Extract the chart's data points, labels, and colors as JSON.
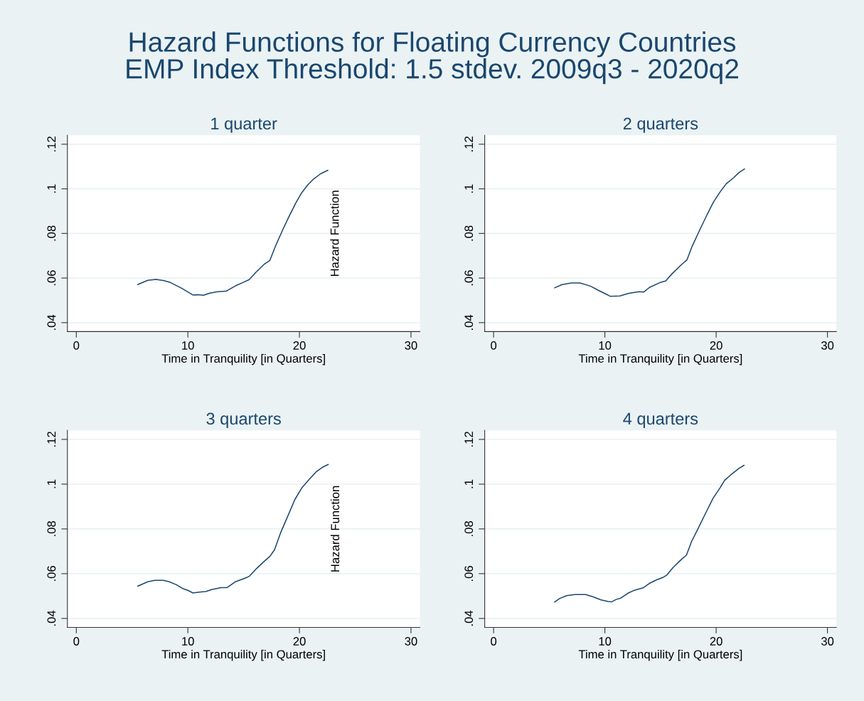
{
  "chart_data": [
    {
      "type": "line",
      "title": "1 quarter",
      "xlabel": "Time in Tranquility [in Quarters]",
      "annotations": [
        "Hazard Functions for Floating Currency Countries\nEMP Index Threshold: 1.5 stdev. 2009q3 - 2020q2"
      ],
      "xlim": [
        -0.8,
        30.8
      ],
      "xticks": [
        0,
        10,
        20,
        30
      ],
      "ylim": [
        0.036,
        0.124
      ],
      "yticks": [
        {
          "value": 0.04,
          "label": ".04"
        },
        {
          "value": 0.06,
          "label": ".06"
        },
        {
          "value": 0.08,
          "label": ".08"
        },
        {
          "value": 0.1,
          "label": ".1"
        },
        {
          "value": 0.12,
          "label": ".12"
        }
      ],
      "grid": "y",
      "series": [
        {
          "name": "Hazard Function",
          "color": "#1a476f",
          "x": [
            5.5,
            6.41,
            7.15,
            7.79,
            8.43,
            9.38,
            10.45,
            10.87,
            11.4,
            11.93,
            12.57,
            13.42,
            14.27,
            14.9,
            15.5,
            16.07,
            16.82,
            17.35,
            17.88,
            18.51,
            19.04,
            19.68,
            20.21,
            20.75,
            21.27,
            21.91,
            22.55
          ],
          "values": [
            0.0571,
            0.059,
            0.0594,
            0.0589,
            0.058,
            0.0556,
            0.0524,
            0.0525,
            0.0523,
            0.0532,
            0.0538,
            0.0541,
            0.0565,
            0.0579,
            0.0593,
            0.0624,
            0.0661,
            0.0679,
            0.0746,
            0.0817,
            0.0873,
            0.0937,
            0.0983,
            0.1018,
            0.1044,
            0.1068,
            0.1083
          ]
        }
      ]
    },
    {
      "type": "line",
      "title": "2 quarters",
      "xlabel": "Time in Tranquility [in Quarters]",
      "xlim": [
        -0.8,
        30.8
      ],
      "xticks": [
        0,
        10,
        20,
        30
      ],
      "ylim": [
        0.036,
        0.124
      ],
      "yticks": [
        {
          "value": 0.04,
          "label": ".04"
        },
        {
          "value": 0.06,
          "label": ".06"
        },
        {
          "value": 0.08,
          "label": ".08"
        },
        {
          "value": 0.1,
          "label": ".1"
        },
        {
          "value": 0.12,
          "label": ".12"
        }
      ],
      "grid": "y",
      "series": [
        {
          "color": "#1a476f",
          "x": [
            5.48,
            6.16,
            7.0,
            7.75,
            8.7,
            9.34,
            9.98,
            10.5,
            11.36,
            12.1,
            13.06,
            13.48,
            14.01,
            14.97,
            15.46,
            16.03,
            16.88,
            17.37,
            17.83,
            18.47,
            19.21,
            19.75,
            20.38,
            20.91,
            21.55,
            22.08,
            22.55
          ],
          "values": [
            0.0556,
            0.0571,
            0.0578,
            0.0578,
            0.0564,
            0.0547,
            0.0531,
            0.0518,
            0.052,
            0.0531,
            0.0539,
            0.0537,
            0.0558,
            0.058,
            0.0587,
            0.0619,
            0.066,
            0.0681,
            0.0741,
            0.081,
            0.0887,
            0.094,
            0.0988,
            0.1023,
            0.1049,
            0.1074,
            0.1089
          ]
        }
      ]
    },
    {
      "type": "line",
      "title": "3 quarters",
      "xlabel": "Time in Tranquility [in Quarters]",
      "xlim": [
        -0.8,
        30.8
      ],
      "xticks": [
        0,
        10,
        20,
        30
      ],
      "ylim": [
        0.036,
        0.124
      ],
      "yticks": [
        {
          "value": 0.04,
          "label": ".04"
        },
        {
          "value": 0.06,
          "label": ".06"
        },
        {
          "value": 0.08,
          "label": ".08"
        },
        {
          "value": 0.1,
          "label": ".1"
        },
        {
          "value": 0.12,
          "label": ".12"
        }
      ],
      "grid": "y",
      "series": [
        {
          "name": "Hazard Function",
          "color": "#1a476f",
          "x": [
            5.5,
            6.41,
            7.05,
            7.79,
            8.32,
            8.96,
            9.6,
            10.02,
            10.45,
            11.08,
            11.61,
            12.14,
            12.99,
            13.53,
            14.27,
            15.33,
            15.54,
            16.18,
            16.82,
            17.35,
            17.77,
            18.3,
            18.94,
            19.58,
            20.21,
            20.85,
            21.48,
            22.12,
            22.59
          ],
          "values": [
            0.0544,
            0.0564,
            0.057,
            0.057,
            0.0564,
            0.0551,
            0.0532,
            0.0525,
            0.0514,
            0.0518,
            0.052,
            0.0529,
            0.0538,
            0.0538,
            0.0564,
            0.0584,
            0.059,
            0.0624,
            0.0654,
            0.0677,
            0.0707,
            0.0781,
            0.0855,
            0.093,
            0.0983,
            0.102,
            0.1054,
            0.1077,
            0.1088
          ]
        }
      ]
    },
    {
      "type": "line",
      "title": "4 quarters",
      "xlabel": "Time in Tranquility [in Quarters]",
      "xlim": [
        -0.8,
        30.8
      ],
      "xticks": [
        0,
        10,
        20,
        30
      ],
      "ylim": [
        0.036,
        0.124
      ],
      "yticks": [
        {
          "value": 0.04,
          "label": ".04"
        },
        {
          "value": 0.06,
          "label": ".06"
        },
        {
          "value": 0.08,
          "label": ".08"
        },
        {
          "value": 0.1,
          "label": ".1"
        },
        {
          "value": 0.12,
          "label": ".12"
        }
      ],
      "grid": "y",
      "series": [
        {
          "color": "#1a476f",
          "x": [
            5.48,
            5.93,
            6.57,
            7.31,
            8.26,
            8.9,
            9.65,
            10.28,
            10.6,
            11.02,
            11.44,
            12.08,
            12.71,
            13.45,
            13.98,
            14.62,
            15.25,
            15.57,
            16.1,
            16.84,
            17.33,
            17.8,
            18.33,
            19.07,
            19.71,
            20.34,
            20.76,
            21.4,
            22.04,
            22.51
          ],
          "values": [
            0.0473,
            0.0489,
            0.0502,
            0.0507,
            0.0507,
            0.0497,
            0.0483,
            0.0476,
            0.0474,
            0.0485,
            0.0491,
            0.0513,
            0.0527,
            0.0537,
            0.0556,
            0.0572,
            0.0584,
            0.0594,
            0.0626,
            0.0662,
            0.0683,
            0.0745,
            0.0797,
            0.0872,
            0.0936,
            0.0983,
            0.1017,
            0.1045,
            0.107,
            0.1084
          ]
        }
      ]
    }
  ]
}
